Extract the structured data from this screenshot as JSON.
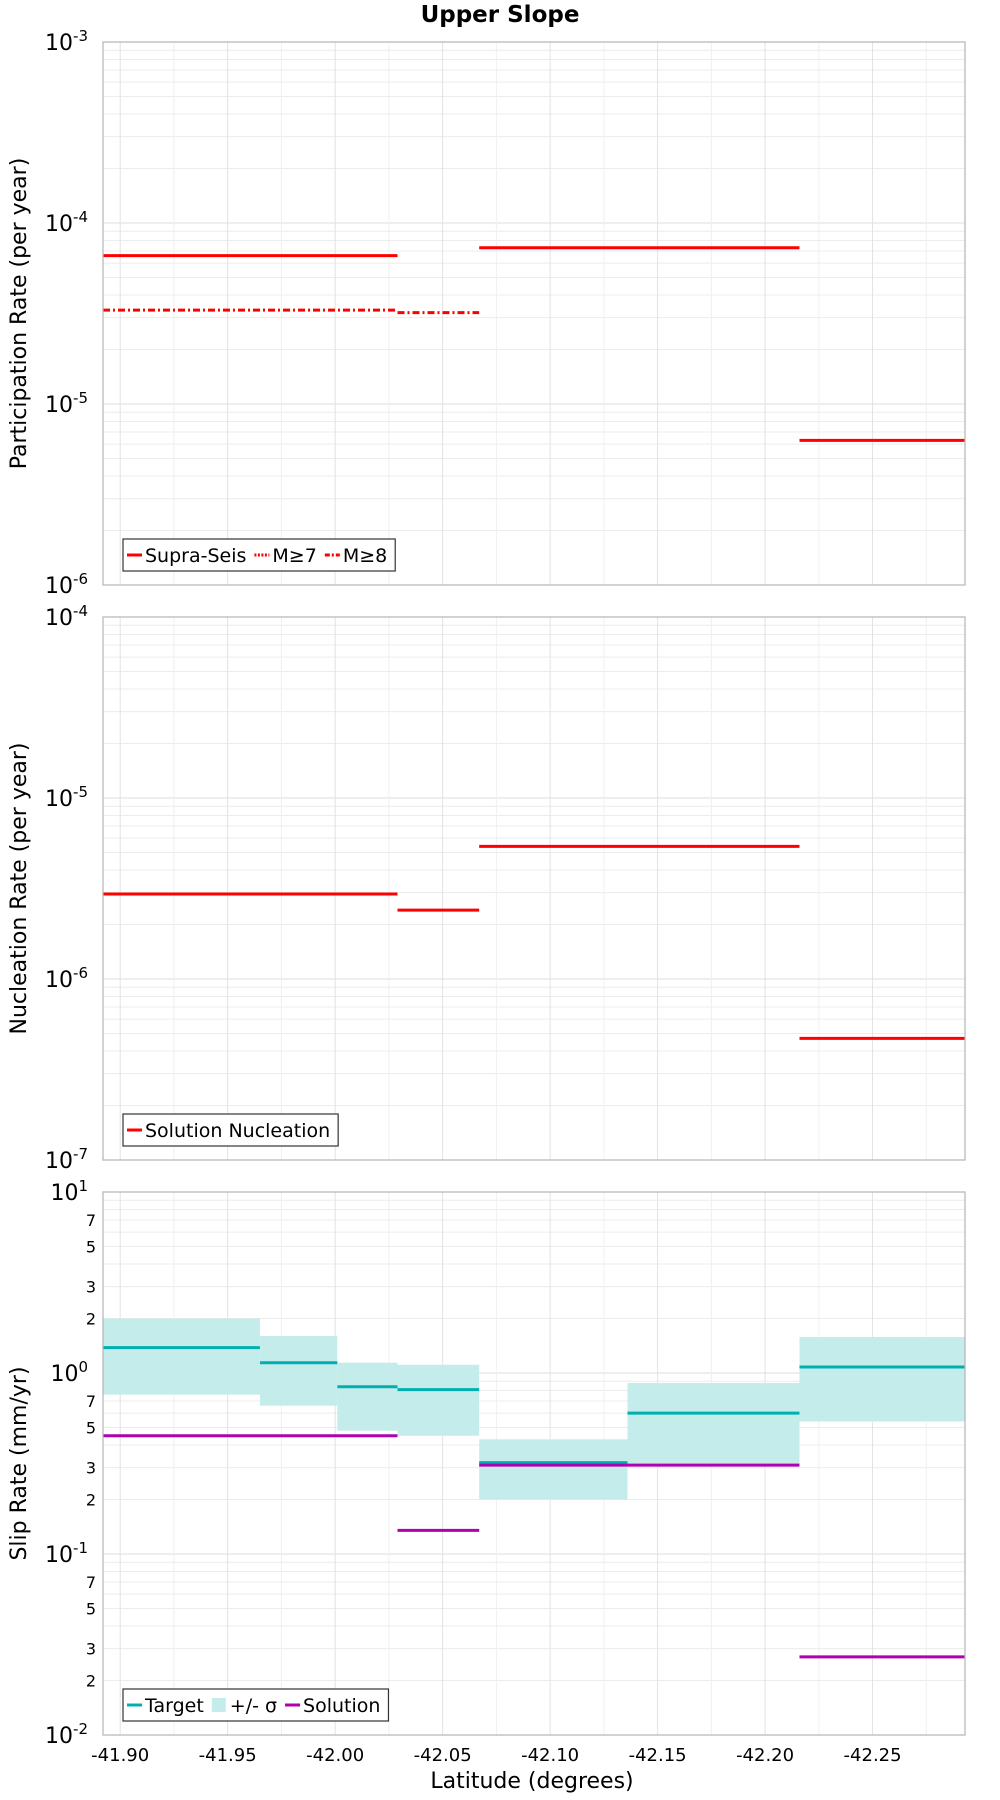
{
  "chart_data": {
    "title": "Upper Slope",
    "xlabel": "Latitude (degrees)",
    "x_ticks": [
      "-41.90",
      "-41.95",
      "-42.00",
      "-42.05",
      "-42.10",
      "-42.15",
      "-42.20",
      "-42.25"
    ],
    "x_tick_values": [
      -41.9,
      -41.95,
      -42.0,
      -42.05,
      -42.1,
      -42.15,
      -42.2,
      -42.25
    ],
    "xlim": [
      -41.892,
      -42.293
    ],
    "panels": [
      {
        "type": "line",
        "ylabel": "Participation Rate (per year)",
        "yscale": "log",
        "ylim_exp": [
          -6,
          -3
        ],
        "legend_placement": "bottom-left",
        "series": [
          {
            "name": "Supra-Seis",
            "color": "#ff0000",
            "style": "solid",
            "segments": [
              {
                "x0": -41.892,
                "x1": -42.029,
                "y": 6.6e-05
              },
              {
                "x0": -42.067,
                "x1": -42.216,
                "y": 7.3e-05
              },
              {
                "x0": -42.216,
                "x1": -42.293,
                "y": 6.3e-06
              }
            ]
          },
          {
            "name": "M≥7",
            "color": "#ff0000",
            "style": "dotted",
            "segments": []
          },
          {
            "name": "M≥8",
            "color": "#ff0000",
            "style": "dashdot",
            "segments": [
              {
                "x0": -41.892,
                "x1": -42.029,
                "y": 3.3e-05
              },
              {
                "x0": -42.029,
                "x1": -42.067,
                "y": 3.2e-05
              }
            ]
          }
        ]
      },
      {
        "type": "line",
        "ylabel": "Nucleation Rate (per year)",
        "yscale": "log",
        "ylim_exp": [
          -7,
          -4
        ],
        "legend_placement": "bottom-left",
        "series": [
          {
            "name": "Solution Nucleation",
            "color": "#ff0000",
            "style": "solid",
            "segments": [
              {
                "x0": -41.892,
                "x1": -42.029,
                "y": 2.95e-06
              },
              {
                "x0": -42.029,
                "x1": -42.067,
                "y": 2.4e-06
              },
              {
                "x0": -42.067,
                "x1": -42.216,
                "y": 5.4e-06
              },
              {
                "x0": -42.216,
                "x1": -42.293,
                "y": 4.7e-07
              }
            ]
          }
        ]
      },
      {
        "type": "line",
        "ylabel": "Slip Rate (mm/yr)",
        "yscale": "log",
        "ylim_exp": [
          -2,
          1
        ],
        "minor_tick_labels": [
          "2",
          "3",
          "5",
          "7"
        ],
        "legend_placement": "bottom-left",
        "series": [
          {
            "name": "Target",
            "color": "#00b0b0",
            "style": "solid",
            "segments": [
              {
                "x0": -41.892,
                "x1": -41.965,
                "y": 1.38
              },
              {
                "x0": -41.965,
                "x1": -42.001,
                "y": 1.14
              },
              {
                "x0": -42.001,
                "x1": -42.029,
                "y": 0.84
              },
              {
                "x0": -42.029,
                "x1": -42.067,
                "y": 0.81
              },
              {
                "x0": -42.067,
                "x1": -42.136,
                "y": 0.32
              },
              {
                "x0": -42.136,
                "x1": -42.216,
                "y": 0.6
              },
              {
                "x0": -42.216,
                "x1": -42.293,
                "y": 1.08
              }
            ]
          },
          {
            "name": "+/- σ",
            "color": "#c4ecea",
            "style": "band",
            "segments": [
              {
                "x0": -41.892,
                "x1": -41.965,
                "lo": 0.76,
                "hi": 2.0
              },
              {
                "x0": -41.965,
                "x1": -42.001,
                "lo": 0.66,
                "hi": 1.6
              },
              {
                "x0": -42.001,
                "x1": -42.029,
                "lo": 0.48,
                "hi": 1.14
              },
              {
                "x0": -42.029,
                "x1": -42.067,
                "lo": 0.45,
                "hi": 1.11
              },
              {
                "x0": -42.067,
                "x1": -42.136,
                "lo": 0.2,
                "hi": 0.43
              },
              {
                "x0": -42.136,
                "x1": -42.216,
                "lo": 0.31,
                "hi": 0.88
              },
              {
                "x0": -42.216,
                "x1": -42.293,
                "lo": 0.54,
                "hi": 1.58
              }
            ]
          },
          {
            "name": "Solution",
            "color": "#b000b0",
            "style": "solid",
            "segments": [
              {
                "x0": -41.892,
                "x1": -42.029,
                "y": 0.45
              },
              {
                "x0": -42.029,
                "x1": -42.067,
                "y": 0.135
              },
              {
                "x0": -42.067,
                "x1": -42.216,
                "y": 0.31
              },
              {
                "x0": -42.216,
                "x1": -42.293,
                "y": 0.027
              }
            ]
          }
        ]
      }
    ]
  }
}
